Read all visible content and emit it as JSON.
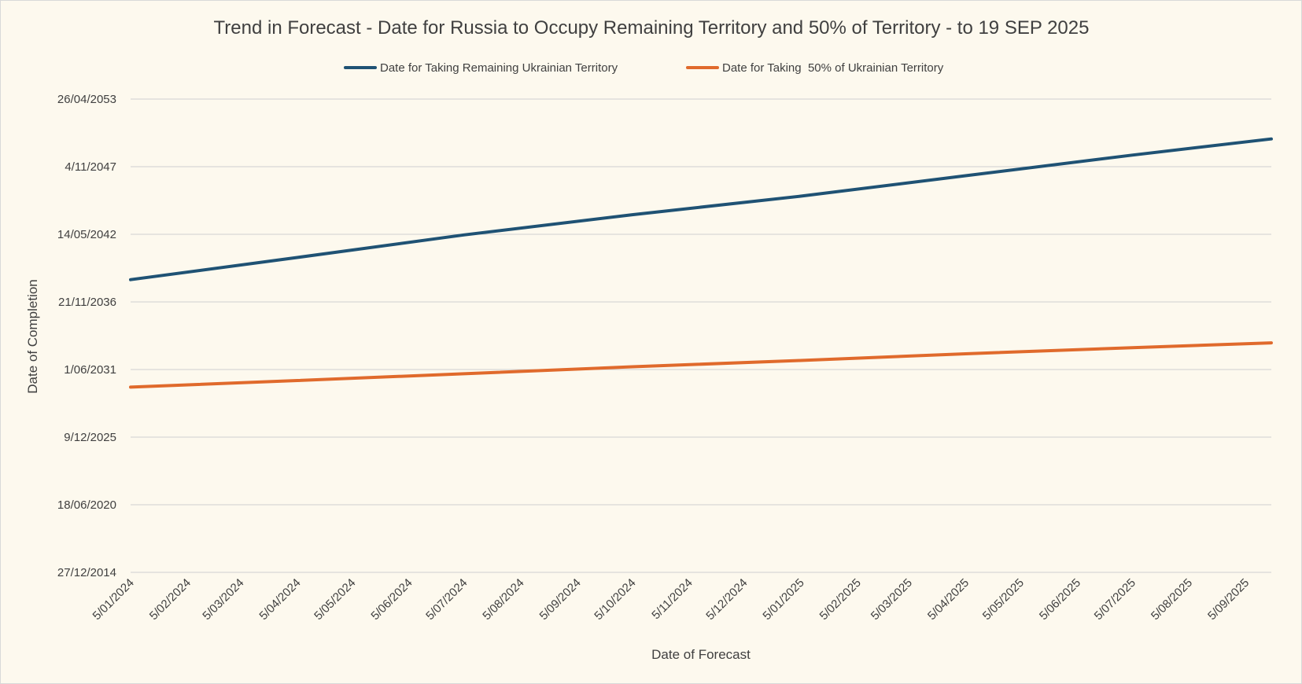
{
  "chart_data": {
    "type": "line",
    "title": "Trend in Forecast - Date for Russia to Occupy Remaining Territory and 50% of Territory - to 19 SEP 2025",
    "xlabel": "Date of Forecast",
    "ylabel": "Date of Completion",
    "x_tick_labels": [
      "5/01/2024",
      "5/02/2024",
      "5/03/2024",
      "5/04/2024",
      "5/05/2024",
      "5/06/2024",
      "5/07/2024",
      "5/08/2024",
      "5/09/2024",
      "5/10/2024",
      "5/11/2024",
      "5/12/2024",
      "5/01/2025",
      "5/02/2025",
      "5/03/2025",
      "5/04/2025",
      "5/05/2025",
      "5/06/2025",
      "5/07/2025",
      "5/08/2025",
      "5/09/2025"
    ],
    "y_tick_labels": [
      "27/12/2014",
      "18/06/2020",
      "9/12/2025",
      "1/06/2031",
      "21/11/2036",
      "14/05/2042",
      "4/11/2047",
      "26/04/2053"
    ],
    "ylim": [
      "27/12/2014",
      "26/04/2053"
    ],
    "xlim": [
      "5/01/2024",
      "19/09/2025"
    ],
    "grid": true,
    "legend_position": "top",
    "series": [
      {
        "name": "Date for Taking Remaining Ukrainian Territory",
        "color": "#1f5274",
        "points": [
          [
            "5/01/2024",
            "9/09/2038"
          ],
          [
            "5/04/2024",
            "28/06/2040"
          ],
          [
            "5/07/2024",
            "26/04/2042"
          ],
          [
            "5/10/2024",
            "14/12/2043"
          ],
          [
            "5/01/2025",
            "15/06/2045"
          ],
          [
            "5/04/2025",
            "9/02/2047"
          ],
          [
            "5/07/2025",
            "12/10/2048"
          ],
          [
            "19/09/2025",
            "3/02/2050"
          ]
        ]
      },
      {
        "name": "Date for Taking  50% of Ukrainian Territory",
        "color": "#e06a2c",
        "points": [
          [
            "5/01/2024",
            "27/12/2029"
          ],
          [
            "5/04/2024",
            "11/07/2030"
          ],
          [
            "5/07/2024",
            "27/01/2031"
          ],
          [
            "5/10/2024",
            "21/08/2031"
          ],
          [
            "5/01/2025",
            "24/02/2032"
          ],
          [
            "5/04/2025",
            "9/09/2032"
          ],
          [
            "5/07/2025",
            "8/03/2033"
          ],
          [
            "19/09/2025",
            "29/07/2033"
          ]
        ]
      }
    ]
  }
}
